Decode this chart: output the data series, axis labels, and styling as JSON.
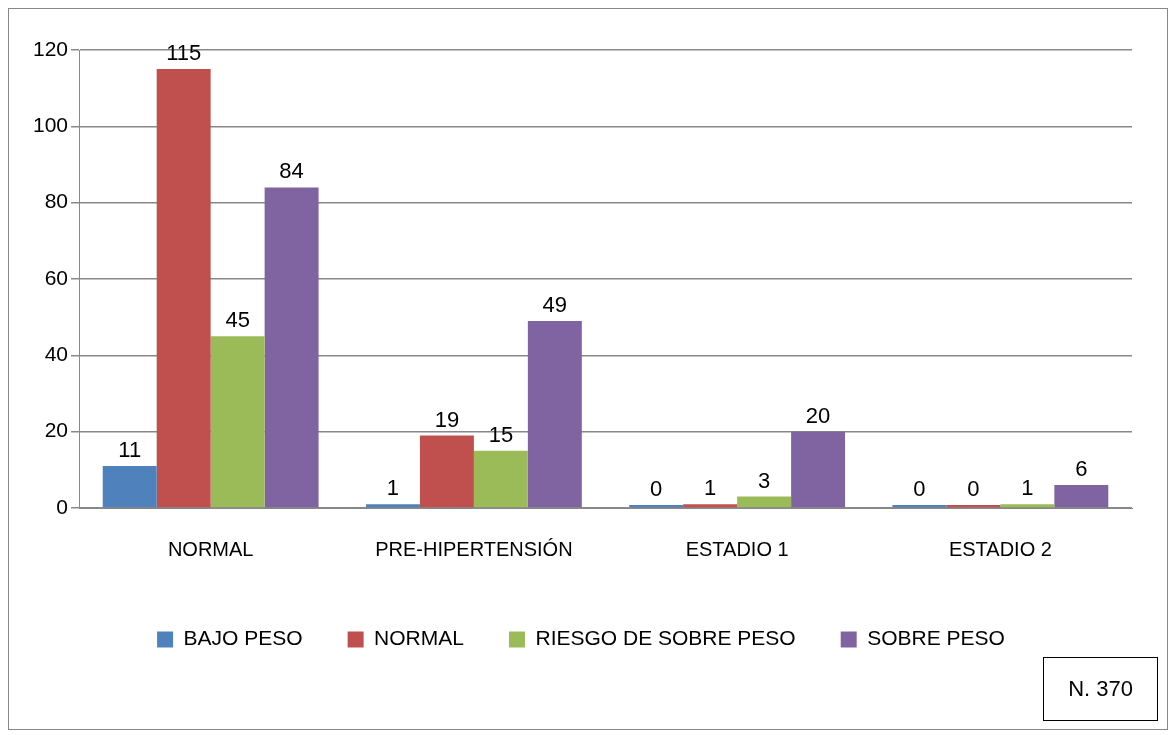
{
  "chart_data": {
    "type": "bar",
    "categories": [
      "NORMAL",
      "PRE-HIPERTENSIÓN",
      "ESTADIO 1",
      "ESTADIO 2"
    ],
    "series": [
      {
        "name": "BAJO PESO",
        "color": "#4f81bd",
        "values": [
          11,
          1,
          0,
          0
        ]
      },
      {
        "name": "NORMAL",
        "color": "#c0504d",
        "values": [
          115,
          19,
          1,
          0
        ]
      },
      {
        "name": "RIESGO DE SOBRE PESO",
        "color": "#9bbb59",
        "values": [
          45,
          15,
          3,
          1
        ]
      },
      {
        "name": "SOBRE PESO",
        "color": "#8064a2",
        "values": [
          84,
          49,
          20,
          6
        ]
      }
    ],
    "ylim": [
      0,
      120
    ],
    "yticks": [
      0,
      20,
      40,
      60,
      80,
      100,
      120
    ],
    "grid": "y",
    "legend": "bottom",
    "data_labels": true,
    "annotations": [
      "N. 370"
    ]
  }
}
